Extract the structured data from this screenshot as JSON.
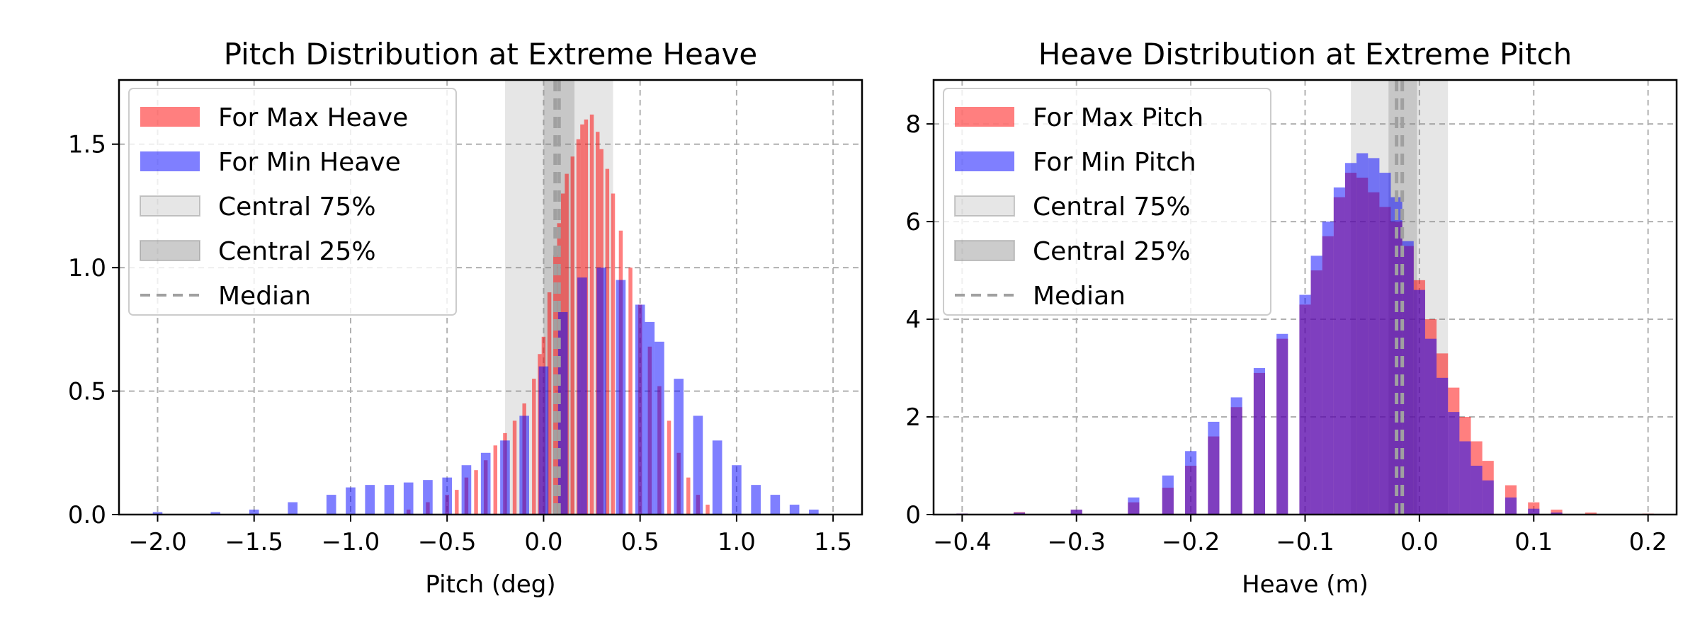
{
  "chart_data": [
    {
      "type": "histogram",
      "title": "Pitch Distribution at Extreme Heave",
      "xlabel": "Pitch (deg)",
      "ylabel": "",
      "xlim": [
        -2.2,
        1.65
      ],
      "ylim": [
        0,
        1.76
      ],
      "xticks": [
        -2.0,
        -1.5,
        -1.0,
        -0.5,
        0.0,
        0.5,
        1.0,
        1.5
      ],
      "xtick_labels": [
        "−2.0",
        "−1.5",
        "−1.0",
        "−0.5",
        "0.0",
        "0.5",
        "1.0",
        "1.5"
      ],
      "yticks": [
        0.0,
        0.5,
        1.0,
        1.5
      ],
      "ytick_labels": [
        "0.0",
        "0.5",
        "1.0",
        "1.5"
      ],
      "grid": true,
      "legend_position": "top-left",
      "central75": [
        -0.2,
        0.36
      ],
      "central25": [
        0.0,
        0.16
      ],
      "median": [
        0.06,
        0.08
      ],
      "series": [
        {
          "name": "For Max Heave",
          "color": "#ff0000",
          "alpha": 0.5,
          "x": [
            -0.8,
            -0.7,
            -0.6,
            -0.5,
            -0.45,
            -0.4,
            -0.35,
            -0.3,
            -0.25,
            -0.2,
            -0.15,
            -0.1,
            -0.05,
            -0.02,
            0.0,
            0.03,
            0.06,
            0.08,
            0.1,
            0.12,
            0.15,
            0.18,
            0.2,
            0.22,
            0.25,
            0.28,
            0.3,
            0.33,
            0.36,
            0.4,
            0.45,
            0.5,
            0.55,
            0.6,
            0.65,
            0.7,
            0.75,
            0.8,
            0.85,
            0.9
          ],
          "values": [
            0.0,
            0.02,
            0.05,
            0.08,
            0.1,
            0.15,
            0.18,
            0.22,
            0.28,
            0.33,
            0.38,
            0.45,
            0.55,
            0.65,
            0.72,
            0.9,
            1.05,
            1.18,
            1.3,
            1.38,
            1.45,
            1.52,
            1.58,
            1.6,
            1.62,
            1.55,
            1.48,
            1.4,
            1.3,
            1.15,
            1.0,
            0.85,
            0.68,
            0.52,
            0.38,
            0.25,
            0.15,
            0.08,
            0.04,
            0.0
          ]
        },
        {
          "name": "For Min Heave",
          "color": "#0000ff",
          "alpha": 0.5,
          "x": [
            -2.0,
            -1.7,
            -1.5,
            -1.3,
            -1.1,
            -1.0,
            -0.9,
            -0.8,
            -0.7,
            -0.6,
            -0.5,
            -0.4,
            -0.3,
            -0.2,
            -0.1,
            0.0,
            0.1,
            0.2,
            0.3,
            0.4,
            0.5,
            0.55,
            0.6,
            0.7,
            0.8,
            0.9,
            1.0,
            1.1,
            1.2,
            1.3,
            1.4,
            1.5
          ],
          "values": [
            0.01,
            0.01,
            0.02,
            0.05,
            0.08,
            0.11,
            0.12,
            0.12,
            0.13,
            0.14,
            0.15,
            0.2,
            0.25,
            0.3,
            0.4,
            0.6,
            0.82,
            0.96,
            1.0,
            0.95,
            0.85,
            0.78,
            0.7,
            0.55,
            0.4,
            0.3,
            0.2,
            0.12,
            0.08,
            0.04,
            0.02,
            0.0
          ]
        }
      ]
    },
    {
      "type": "histogram",
      "title": "Heave Distribution at Extreme Pitch",
      "xlabel": "Heave (m)",
      "ylabel": "",
      "xlim": [
        -0.425,
        0.225
      ],
      "ylim": [
        0,
        8.9
      ],
      "xticks": [
        -0.4,
        -0.3,
        -0.2,
        -0.1,
        0.0,
        0.1,
        0.2
      ],
      "xtick_labels": [
        "−0.4",
        "−0.3",
        "−0.2",
        "−0.1",
        "0.0",
        "0.1",
        "0.2"
      ],
      "yticks": [
        0,
        2,
        4,
        6,
        8
      ],
      "ytick_labels": [
        "0",
        "2",
        "4",
        "6",
        "8"
      ],
      "grid": true,
      "legend_position": "top-left",
      "central75": [
        -0.06,
        0.025
      ],
      "central25": [
        -0.027,
        -0.002
      ],
      "median": [
        -0.02,
        -0.015
      ],
      "series": [
        {
          "name": "For Max Pitch",
          "color": "#ff0000",
          "alpha": 0.5,
          "x": [
            -0.4,
            -0.35,
            -0.3,
            -0.25,
            -0.22,
            -0.2,
            -0.18,
            -0.16,
            -0.14,
            -0.12,
            -0.1,
            -0.09,
            -0.08,
            -0.07,
            -0.06,
            -0.05,
            -0.04,
            -0.03,
            -0.02,
            -0.01,
            0.0,
            0.01,
            0.02,
            0.03,
            0.04,
            0.05,
            0.06,
            0.08,
            0.1,
            0.12,
            0.15,
            0.2
          ],
          "values": [
            0.02,
            0.05,
            0.1,
            0.25,
            0.55,
            1.0,
            1.6,
            2.2,
            2.9,
            3.6,
            4.3,
            5.0,
            5.7,
            6.5,
            7.0,
            6.9,
            6.6,
            6.3,
            6.0,
            5.5,
            4.8,
            4.0,
            3.3,
            2.6,
            2.0,
            1.5,
            1.1,
            0.6,
            0.25,
            0.1,
            0.04,
            0.02
          ]
        },
        {
          "name": "For Min Pitch",
          "color": "#0000ff",
          "alpha": 0.5,
          "x": [
            -0.4,
            -0.35,
            -0.3,
            -0.25,
            -0.22,
            -0.2,
            -0.18,
            -0.16,
            -0.14,
            -0.12,
            -0.1,
            -0.09,
            -0.08,
            -0.07,
            -0.06,
            -0.05,
            -0.04,
            -0.03,
            -0.02,
            -0.01,
            0.0,
            0.01,
            0.02,
            0.03,
            0.04,
            0.05,
            0.06,
            0.08,
            0.1,
            0.12
          ],
          "values": [
            0.02,
            0.04,
            0.1,
            0.35,
            0.8,
            1.3,
            1.9,
            2.4,
            3.0,
            3.7,
            4.5,
            5.3,
            6.0,
            6.7,
            7.2,
            7.4,
            7.3,
            7.0,
            6.5,
            5.6,
            4.6,
            3.6,
            2.8,
            2.1,
            1.5,
            1.0,
            0.7,
            0.35,
            0.12,
            0.04
          ]
        }
      ]
    }
  ],
  "legend_labels": {
    "central75": "Central 75%",
    "central25": "Central 25%",
    "median": "Median"
  }
}
